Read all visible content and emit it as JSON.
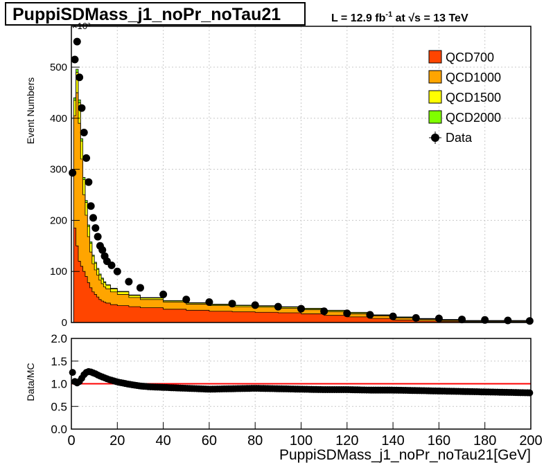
{
  "header": {
    "title": "PuppiSDMass_j1_noPr_noTau21",
    "lumi_prefix": "L = 12.9 fb",
    "lumi_exp": "-1",
    "lumi_mid": " at ",
    "lumi_sqrt": "√",
    "lumi_s": "s = 13 TeV"
  },
  "chart_data": [
    {
      "type": "area",
      "panel": "main",
      "stacked": true,
      "ylabel": "Event Numbers",
      "y_multiplier": "×10³",
      "xlim": [
        0,
        200
      ],
      "ylim": [
        0,
        580
      ],
      "yticks": [
        "0",
        "100",
        "200",
        "300",
        "400",
        "500"
      ],
      "legend_position": "top-right",
      "x": [
        0,
        1,
        2,
        3,
        4,
        5,
        6,
        7,
        8,
        9,
        10,
        11,
        12,
        13,
        14,
        15,
        17,
        20,
        25,
        30,
        40,
        50,
        60,
        70,
        80,
        90,
        100,
        110,
        120,
        130,
        140,
        150,
        160,
        170,
        180,
        190,
        200
      ],
      "series": [
        {
          "name": "QCD700",
          "color": "#ff4500",
          "values": [
            0,
            185,
            150,
            120,
            110,
            100,
            90,
            78,
            68,
            60,
            55,
            50,
            45,
            42,
            40,
            38,
            35,
            33,
            31,
            29,
            26,
            24,
            22,
            21,
            20,
            19,
            17,
            14,
            11,
            8,
            5,
            3,
            2,
            1,
            1,
            1,
            0
          ]
        },
        {
          "name": "QCD1000",
          "color": "#ffa500",
          "values": [
            0,
            220,
            300,
            270,
            210,
            150,
            120,
            90,
            70,
            55,
            48,
            43,
            38,
            34,
            30,
            28,
            25,
            22,
            18,
            16,
            14,
            12,
            11,
            10,
            10,
            9,
            8,
            7,
            6,
            5,
            4,
            3,
            2,
            1,
            1,
            1,
            0
          ]
        },
        {
          "name": "QCD1500",
          "color": "#ffff00",
          "values": [
            0,
            30,
            40,
            40,
            35,
            30,
            25,
            20,
            17,
            15,
            13,
            11,
            10,
            9,
            8,
            7,
            6,
            5,
            4,
            3,
            2,
            2,
            2,
            2,
            2,
            2,
            2,
            2,
            2,
            1,
            1,
            1,
            1,
            1,
            1,
            1,
            0
          ]
        },
        {
          "name": "QCD2000",
          "color": "#7fff00",
          "values": [
            0,
            5,
            6,
            6,
            5,
            4,
            4,
            3,
            3,
            2,
            2,
            2,
            2,
            2,
            2,
            1,
            1,
            1,
            1,
            1,
            1,
            1,
            1,
            1,
            1,
            1,
            1,
            1,
            1,
            1,
            1,
            1,
            1,
            1,
            1,
            1,
            0
          ]
        }
      ],
      "data_series": {
        "name": "Data",
        "color": "#000000",
        "x": [
          0.5,
          1.5,
          2.5,
          3.5,
          4.5,
          5.5,
          6.5,
          7.5,
          8.5,
          9.5,
          10.5,
          11.5,
          12.5,
          13.5,
          14.5,
          15.5,
          17.5,
          20,
          25,
          30,
          40,
          50,
          60,
          70,
          80,
          90,
          100,
          110,
          120,
          130,
          140,
          150,
          160,
          170,
          180,
          190,
          199.5
        ],
        "y": [
          293,
          515,
          550,
          480,
          420,
          372,
          322,
          275,
          228,
          205,
          185,
          168,
          150,
          142,
          130,
          120,
          112,
          100,
          80,
          68,
          55,
          45,
          40,
          37,
          34,
          31,
          27,
          22,
          18,
          15,
          12,
          9,
          8,
          6,
          5,
          4,
          3
        ]
      }
    },
    {
      "type": "scatter",
      "panel": "ratio",
      "ylabel": "Data/MC",
      "xlabel": "PuppiSDMass_j1_noPr_noTau21[GeV]",
      "xlim": [
        0,
        200
      ],
      "ylim": [
        0,
        2
      ],
      "xticks": [
        "0",
        "20",
        "40",
        "60",
        "80",
        "100",
        "120",
        "140",
        "160",
        "180",
        "200"
      ],
      "yticks": [
        "0.0",
        "0.5",
        "1.0",
        "1.5",
        "2.0"
      ],
      "reference_line": 1.0,
      "reference_color": "#ff0000",
      "x": [
        0.5,
        1.5,
        2.5,
        3.5,
        4.5,
        5.5,
        6.5,
        7.5,
        8.5,
        9.5,
        10.5,
        12,
        14,
        16,
        18,
        20,
        25,
        30,
        35,
        40,
        50,
        60,
        70,
        80,
        90,
        100,
        110,
        120,
        130,
        140,
        150,
        160,
        170,
        180,
        190,
        199.5
      ],
      "y": [
        1.25,
        1.05,
        1.02,
        1.05,
        1.12,
        1.2,
        1.25,
        1.27,
        1.26,
        1.24,
        1.22,
        1.18,
        1.14,
        1.1,
        1.07,
        1.04,
        0.99,
        0.95,
        0.93,
        0.92,
        0.9,
        0.88,
        0.89,
        0.9,
        0.89,
        0.88,
        0.87,
        0.87,
        0.86,
        0.86,
        0.85,
        0.84,
        0.83,
        0.82,
        0.81,
        0.8
      ]
    }
  ]
}
